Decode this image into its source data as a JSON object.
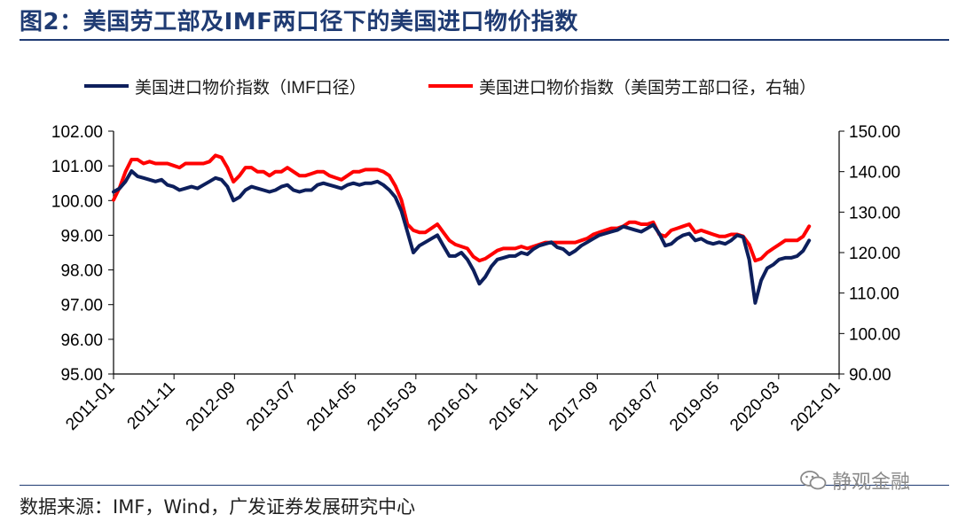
{
  "title": "图2：美国劳工部及IMF两口径下的美国进口物价指数",
  "source": "数据来源：IMF，Wind，广发证券发展研究中心",
  "watermark": "静观金融",
  "colors": {
    "series_imf": "#0d1f5c",
    "series_bls": "#ff0000",
    "title": "#1f3b73"
  },
  "chart_data": {
    "type": "line",
    "title": "",
    "xlabel": "",
    "ylabel_left": "",
    "ylabel_right": "",
    "legend_position": "top",
    "grid": false,
    "x_tick_labels": [
      "2011-01",
      "2011-11",
      "2012-09",
      "2013-07",
      "2014-05",
      "2015-03",
      "2016-01",
      "2016-11",
      "2017-09",
      "2018-07",
      "2019-05",
      "2020-03",
      "2021-01"
    ],
    "y_left": {
      "min": 95,
      "max": 102,
      "ticks": [
        "95.00",
        "96.00",
        "97.00",
        "98.00",
        "99.00",
        "100.00",
        "101.00",
        "102.00"
      ]
    },
    "y_right": {
      "min": 90,
      "max": 150,
      "ticks": [
        "90.00",
        "100.00",
        "110.00",
        "120.00",
        "130.00",
        "140.00",
        "150.00"
      ]
    },
    "x_range": [
      0,
      121
    ],
    "series": [
      {
        "name": "美国进口物价指数（IMF口径）",
        "axis": "left",
        "points": [
          [
            0,
            100.25
          ],
          [
            1,
            100.35
          ],
          [
            2,
            100.55
          ],
          [
            3,
            100.85
          ],
          [
            4,
            100.7
          ],
          [
            5,
            100.65
          ],
          [
            6,
            100.6
          ],
          [
            7,
            100.55
          ],
          [
            8,
            100.6
          ],
          [
            9,
            100.45
          ],
          [
            10,
            100.4
          ],
          [
            11,
            100.3
          ],
          [
            12,
            100.35
          ],
          [
            13,
            100.4
          ],
          [
            14,
            100.35
          ],
          [
            15,
            100.45
          ],
          [
            16,
            100.55
          ],
          [
            17,
            100.65
          ],
          [
            18,
            100.6
          ],
          [
            19,
            100.4
          ],
          [
            20,
            100.0
          ],
          [
            21,
            100.1
          ],
          [
            22,
            100.3
          ],
          [
            23,
            100.4
          ],
          [
            24,
            100.35
          ],
          [
            25,
            100.3
          ],
          [
            26,
            100.25
          ],
          [
            27,
            100.3
          ],
          [
            28,
            100.4
          ],
          [
            29,
            100.45
          ],
          [
            30,
            100.3
          ],
          [
            31,
            100.25
          ],
          [
            32,
            100.3
          ],
          [
            33,
            100.3
          ],
          [
            34,
            100.45
          ],
          [
            35,
            100.5
          ],
          [
            36,
            100.45
          ],
          [
            37,
            100.4
          ],
          [
            38,
            100.35
          ],
          [
            39,
            100.45
          ],
          [
            40,
            100.5
          ],
          [
            41,
            100.45
          ],
          [
            42,
            100.5
          ],
          [
            43,
            100.5
          ],
          [
            44,
            100.55
          ],
          [
            45,
            100.45
          ],
          [
            46,
            100.3
          ],
          [
            47,
            100.1
          ],
          [
            48,
            99.7
          ],
          [
            49,
            99.1
          ],
          [
            50,
            98.5
          ],
          [
            51,
            98.7
          ],
          [
            52,
            98.8
          ],
          [
            53,
            98.9
          ],
          [
            54,
            99.0
          ],
          [
            55,
            98.7
          ],
          [
            56,
            98.4
          ],
          [
            57,
            98.4
          ],
          [
            58,
            98.5
          ],
          [
            59,
            98.3
          ],
          [
            60,
            98.0
          ],
          [
            61,
            97.6
          ],
          [
            62,
            97.8
          ],
          [
            63,
            98.1
          ],
          [
            64,
            98.3
          ],
          [
            65,
            98.35
          ],
          [
            66,
            98.4
          ],
          [
            67,
            98.4
          ],
          [
            68,
            98.5
          ],
          [
            69,
            98.45
          ],
          [
            70,
            98.6
          ],
          [
            71,
            98.7
          ],
          [
            72,
            98.75
          ],
          [
            73,
            98.8
          ],
          [
            74,
            98.65
          ],
          [
            75,
            98.6
          ],
          [
            76,
            98.45
          ],
          [
            77,
            98.55
          ],
          [
            78,
            98.7
          ],
          [
            79,
            98.8
          ],
          [
            80,
            98.9
          ],
          [
            81,
            99.0
          ],
          [
            82,
            99.05
          ],
          [
            83,
            99.1
          ],
          [
            84,
            99.15
          ],
          [
            85,
            99.25
          ],
          [
            86,
            99.2
          ],
          [
            87,
            99.15
          ],
          [
            88,
            99.1
          ],
          [
            89,
            99.2
          ],
          [
            90,
            99.3
          ],
          [
            91,
            99.05
          ],
          [
            92,
            98.7
          ],
          [
            93,
            98.75
          ],
          [
            94,
            98.9
          ],
          [
            95,
            99.0
          ],
          [
            96,
            99.05
          ],
          [
            97,
            98.85
          ],
          [
            98,
            98.9
          ],
          [
            99,
            98.8
          ],
          [
            100,
            98.75
          ],
          [
            101,
            98.8
          ],
          [
            102,
            98.75
          ],
          [
            103,
            98.85
          ],
          [
            104,
            99.0
          ],
          [
            105,
            98.95
          ],
          [
            106,
            98.3
          ],
          [
            107,
            97.05
          ],
          [
            108,
            97.7
          ],
          [
            109,
            98.05
          ],
          [
            110,
            98.15
          ],
          [
            111,
            98.3
          ],
          [
            112,
            98.35
          ],
          [
            113,
            98.35
          ],
          [
            114,
            98.4
          ],
          [
            115,
            98.55
          ],
          [
            116,
            98.85
          ]
        ]
      },
      {
        "name": "美国进口物价指数（美国劳工部口径，右轴）",
        "axis": "right",
        "points": [
          [
            0,
            133
          ],
          [
            1,
            136
          ],
          [
            2,
            140
          ],
          [
            3,
            143
          ],
          [
            4,
            143
          ],
          [
            5,
            142
          ],
          [
            6,
            142.5
          ],
          [
            7,
            142
          ],
          [
            8,
            142
          ],
          [
            9,
            142
          ],
          [
            10,
            141.5
          ],
          [
            11,
            141
          ],
          [
            12,
            142
          ],
          [
            13,
            142
          ],
          [
            14,
            142
          ],
          [
            15,
            142
          ],
          [
            16,
            142.5
          ],
          [
            17,
            144
          ],
          [
            18,
            143.5
          ],
          [
            19,
            141
          ],
          [
            20,
            137.5
          ],
          [
            21,
            139
          ],
          [
            22,
            141
          ],
          [
            23,
            141
          ],
          [
            24,
            140
          ],
          [
            25,
            140
          ],
          [
            26,
            139
          ],
          [
            27,
            140
          ],
          [
            28,
            140
          ],
          [
            29,
            141
          ],
          [
            30,
            140
          ],
          [
            31,
            139
          ],
          [
            32,
            139
          ],
          [
            33,
            139.5
          ],
          [
            34,
            140
          ],
          [
            35,
            140
          ],
          [
            36,
            139
          ],
          [
            37,
            138.5
          ],
          [
            38,
            138
          ],
          [
            39,
            139
          ],
          [
            40,
            140
          ],
          [
            41,
            140
          ],
          [
            42,
            140.5
          ],
          [
            43,
            140.5
          ],
          [
            44,
            140.5
          ],
          [
            45,
            140
          ],
          [
            46,
            139
          ],
          [
            47,
            136.5
          ],
          [
            48,
            133
          ],
          [
            49,
            127
          ],
          [
            50,
            125.5
          ],
          [
            51,
            125
          ],
          [
            52,
            125
          ],
          [
            53,
            126
          ],
          [
            54,
            127
          ],
          [
            55,
            125
          ],
          [
            56,
            123
          ],
          [
            57,
            122
          ],
          [
            58,
            121.5
          ],
          [
            59,
            121
          ],
          [
            60,
            119
          ],
          [
            61,
            118
          ],
          [
            62,
            118.5
          ],
          [
            63,
            119.5
          ],
          [
            64,
            120.5
          ],
          [
            65,
            121
          ],
          [
            66,
            121
          ],
          [
            67,
            121
          ],
          [
            68,
            121.5
          ],
          [
            69,
            121
          ],
          [
            70,
            121.5
          ],
          [
            71,
            122
          ],
          [
            72,
            122.5
          ],
          [
            73,
            122.5
          ],
          [
            74,
            122.5
          ],
          [
            75,
            122.5
          ],
          [
            76,
            122.5
          ],
          [
            77,
            122.5
          ],
          [
            78,
            123
          ],
          [
            79,
            123.5
          ],
          [
            80,
            124.5
          ],
          [
            81,
            125
          ],
          [
            82,
            125.5
          ],
          [
            83,
            126
          ],
          [
            84,
            126
          ],
          [
            85,
            126.5
          ],
          [
            86,
            127.5
          ],
          [
            87,
            127.5
          ],
          [
            88,
            127
          ],
          [
            89,
            127
          ],
          [
            90,
            127.5
          ],
          [
            91,
            124.5
          ],
          [
            92,
            124
          ],
          [
            93,
            125.5
          ],
          [
            94,
            126
          ],
          [
            95,
            126.5
          ],
          [
            96,
            127
          ],
          [
            97,
            125
          ],
          [
            98,
            125.5
          ],
          [
            99,
            125
          ],
          [
            100,
            124.5
          ],
          [
            101,
            124
          ],
          [
            102,
            124
          ],
          [
            103,
            124.5
          ],
          [
            104,
            124.5
          ],
          [
            105,
            124
          ],
          [
            106,
            122
          ],
          [
            107,
            118
          ],
          [
            108,
            118.5
          ],
          [
            109,
            120
          ],
          [
            110,
            121
          ],
          [
            111,
            122
          ],
          [
            112,
            123
          ],
          [
            113,
            123
          ],
          [
            114,
            123
          ],
          [
            115,
            124
          ],
          [
            116,
            126.5
          ]
        ]
      }
    ]
  }
}
